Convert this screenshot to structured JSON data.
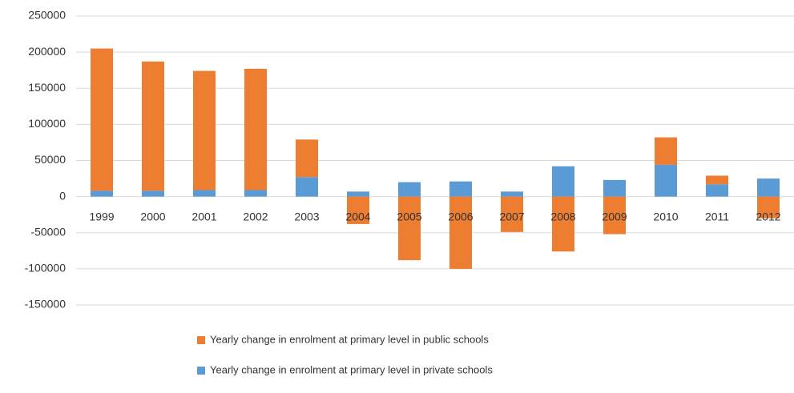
{
  "chart_data": {
    "type": "stacked_bar",
    "categories": [
      "1999",
      "2000",
      "2001",
      "2002",
      "2003",
      "2004",
      "2005",
      "2006",
      "2007",
      "2008",
      "2009",
      "2010",
      "2011",
      "2012"
    ],
    "series": [
      {
        "name": "Yearly change in enrolment at primary level in private schools",
        "color": "#5b9bd5",
        "values": [
          8000,
          8000,
          9000,
          9000,
          27000,
          7000,
          20000,
          21000,
          7000,
          42000,
          23000,
          44000,
          17000,
          25000
        ]
      },
      {
        "name": "Yearly change in enrolment at primary level in public schools",
        "color": "#ed7d31",
        "values": [
          197000,
          179000,
          165000,
          168000,
          52000,
          -38000,
          -88000,
          -100000,
          -49000,
          -76000,
          -52000,
          38000,
          12000,
          -30000
        ]
      }
    ],
    "legend_order": [
      1,
      0
    ],
    "ylim": [
      -150000,
      250000
    ],
    "yticks": [
      -150000,
      -100000,
      -50000,
      0,
      50000,
      100000,
      150000,
      200000,
      250000
    ],
    "grid": true
  }
}
